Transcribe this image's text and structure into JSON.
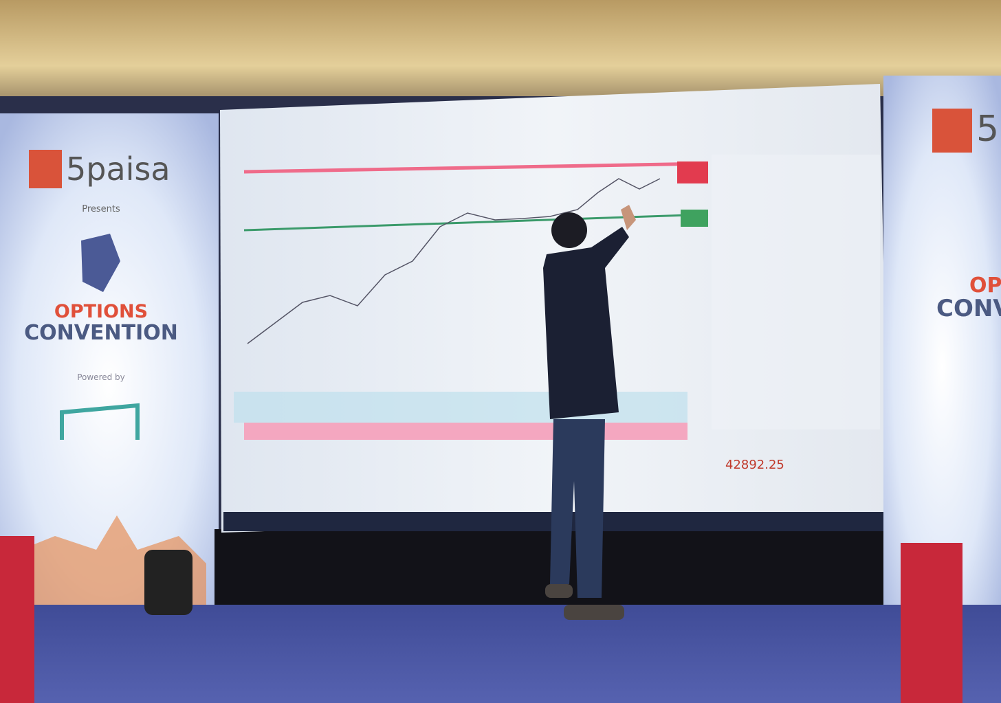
{
  "left_banner": {
    "brand": "5paisa",
    "presents": "Presents",
    "title_line1": "OPTIONS",
    "title_line2": "CONVENTION",
    "powered_by": "Powered by"
  },
  "screen": {
    "price": "42892.25"
  },
  "right_banner": {
    "brand": "5",
    "title_line1": "OP",
    "title_line2": "CONV"
  }
}
